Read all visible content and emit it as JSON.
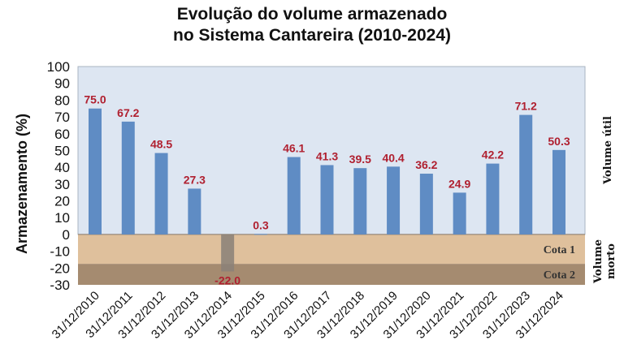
{
  "chart_data": {
    "type": "bar",
    "title_line1": "Evolução do volume armazenado",
    "title_line2": "no Sistema Cantareira (2010-2024)",
    "xlabel": "",
    "ylabel": "Armazenamento (%)",
    "ylim": [
      -30,
      100
    ],
    "yticks": [
      100,
      90,
      80,
      70,
      60,
      50,
      40,
      30,
      20,
      10,
      0,
      -10,
      -20,
      -30
    ],
    "grid": false,
    "categories": [
      "31/12/2010",
      "31/12/2011",
      "31/12/2012",
      "31/12/2013",
      "31/12/2014",
      "31/12/2015",
      "31/12/2016",
      "31/12/2017",
      "31/12/2018",
      "31/12/2019",
      "31/12/2020",
      "31/12/2021",
      "31/12/2022",
      "31/12/2023",
      "31/12/2024"
    ],
    "values": [
      75.0,
      67.2,
      48.5,
      27.3,
      -22.0,
      0.3,
      46.1,
      41.3,
      39.5,
      40.4,
      36.2,
      24.9,
      42.2,
      71.2,
      50.3
    ],
    "data_labels": [
      "75.0",
      "67.2",
      "48.5",
      "27.3",
      "-22.0",
      "0.3",
      "46.1",
      "41.3",
      "39.5",
      "40.4",
      "36.2",
      "24.9",
      "42.2",
      "71.2",
      "50.3"
    ],
    "bands": [
      {
        "label": "Cota 1",
        "from": 0,
        "to": -17.5,
        "color": "#dfc09c"
      },
      {
        "label": "Cota 2",
        "from": -17.5,
        "to": -30,
        "color": "#a58b70"
      }
    ],
    "right_labels": {
      "upper": "Volume útil",
      "lower_line1": "Volume",
      "lower_line2": "morto"
    },
    "colors": {
      "bar": "#5f8cc4",
      "negative_bar": "#8a8078",
      "label": "#b02030",
      "plot_bg": "#dde6f2"
    }
  }
}
